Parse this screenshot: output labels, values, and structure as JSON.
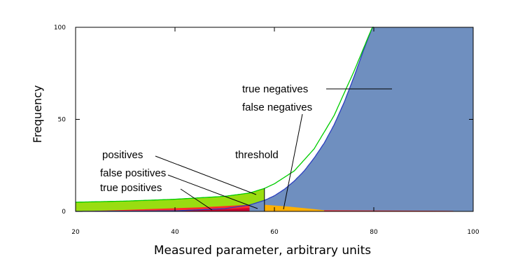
{
  "chart_data": {
    "type": "area",
    "title": "",
    "xlabel": "Measured parameter, arbitrary units",
    "ylabel": "Frequency",
    "xlim": [
      20,
      100
    ],
    "ylim": [
      0,
      100
    ],
    "x_ticks": [
      "20",
      "40",
      "60",
      "80",
      "100"
    ],
    "y_ticks": [
      "0",
      "50",
      "100"
    ],
    "grid": false,
    "threshold_x": 58,
    "colors": {
      "true_negatives": "#6f8fbf",
      "negatives_curve": "#2b3fbf",
      "positives_curve": "#00cc00",
      "positives_fill": "#99dd11",
      "false_positives": "#ff2b2b",
      "true_positives": "#cc0033",
      "false_negatives": "#ffb000",
      "threshold_line": "#000000"
    },
    "series": [
      {
        "name": "positives",
        "x": [
          20,
          30,
          40,
          50,
          55,
          58,
          60,
          64,
          68,
          72,
          76,
          80
        ],
        "y": [
          5,
          5.6,
          6.6,
          8.2,
          10,
          12.5,
          15,
          22,
          34,
          52,
          76,
          102
        ]
      },
      {
        "name": "negatives",
        "x": [
          20,
          40,
          50,
          55,
          58,
          60,
          62,
          64,
          66,
          68,
          70,
          72,
          74,
          76,
          78,
          80
        ],
        "y": [
          0,
          0.3,
          1.5,
          3.5,
          6,
          8.5,
          12,
          16.5,
          22,
          29,
          37,
          47,
          59,
          73,
          88,
          102
        ]
      }
    ],
    "annotations": [
      {
        "id": "true_negatives",
        "text": "true negatives"
      },
      {
        "id": "false_negatives",
        "text": "false negatives"
      },
      {
        "id": "positives",
        "text": "positives"
      },
      {
        "id": "threshold",
        "text": "threshold"
      },
      {
        "id": "false_positives",
        "text": "false positives"
      },
      {
        "id": "true_positives",
        "text": "true positives"
      }
    ]
  }
}
